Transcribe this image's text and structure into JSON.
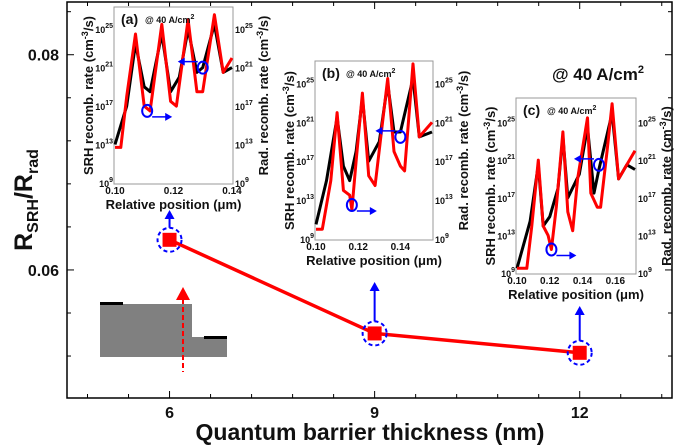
{
  "chart_data": [
    {
      "type": "line",
      "xlabel": "Quantum barrier thickness (nm)",
      "ylabel_main": "R",
      "ylabel_sub1": "SRH",
      "ylabel_slash": "/R",
      "ylabel_sub2": "rad",
      "annotation": "@ 40 A/cm",
      "annotation_sup": "2",
      "x": [
        6,
        9,
        12
      ],
      "y": [
        0.0628,
        0.0541,
        0.0523
      ],
      "xticks": [
        "6",
        "9",
        "12"
      ],
      "yticks": [
        "0.06",
        "0.08"
      ],
      "xlim": [
        4.5,
        13.35
      ],
      "ylim": [
        0.0481,
        0.0849
      ],
      "line_color": "#ff0000",
      "marker_color": "#ff0000",
      "highlight_color": "#0000ff"
    },
    {
      "type": "line",
      "panel": "(a)",
      "note": "@ 40 A/cm",
      "note_sup": "2",
      "xlabel": "Relative position (μm)",
      "ylabel_left": "SRH recomb. rate (cm",
      "ylabel_right": "Rad. recomb. rate (cm",
      "ylabel_exp": "-3",
      "ylabel_tail": "/s)",
      "yscale": "log",
      "xlim": [
        0.1,
        0.14
      ],
      "ylim_log10": [
        9,
        27.2
      ],
      "xticks": [
        "0.10",
        "0.12",
        "0.14"
      ],
      "ytick_exponents": [
        "9",
        "13",
        "17",
        "21",
        "25"
      ],
      "series": [
        {
          "color": "#000000",
          "points": [
            [
              0.1,
              13
            ],
            [
              0.104,
              17
            ],
            [
              0.107,
              23.5
            ],
            [
              0.11,
              19
            ],
            [
              0.112,
              18.5
            ],
            [
              0.116,
              24.5
            ],
            [
              0.119,
              18.5
            ],
            [
              0.122,
              20
            ],
            [
              0.125,
              25
            ],
            [
              0.128,
              20.5
            ],
            [
              0.13,
              21
            ],
            [
              0.134,
              25.5
            ],
            [
              0.137,
              20.5
            ],
            [
              0.14,
              21
            ]
          ]
        },
        {
          "color": "#ff0000",
          "points": [
            [
              0.1,
              12.7
            ],
            [
              0.102,
              12.7
            ],
            [
              0.104,
              18
            ],
            [
              0.107,
              24.5
            ],
            [
              0.11,
              17
            ],
            [
              0.112,
              16.5
            ],
            [
              0.116,
              25.5
            ],
            [
              0.119,
              17.5
            ],
            [
              0.121,
              17
            ],
            [
              0.125,
              26
            ],
            [
              0.128,
              18.5
            ],
            [
              0.13,
              18.5
            ],
            [
              0.134,
              26.5
            ],
            [
              0.137,
              20.5
            ],
            [
              0.14,
              22
            ]
          ]
        }
      ],
      "markers": [
        {
          "x": 0.111,
          "y": 16.5,
          "arrow": "right"
        },
        {
          "x": 0.13,
          "y": 21,
          "arrow": "left"
        }
      ]
    },
    {
      "type": "line",
      "panel": "(b)",
      "note": "@ 40 A/cm",
      "note_sup": "2",
      "xlabel": "Relative position (μm)",
      "ylabel_left": "SRH recomb. rate (cm",
      "ylabel_right": "Rad. recomb. rate (cm",
      "ylabel_exp": "-3",
      "ylabel_tail": "/s)",
      "yscale": "log",
      "xlim": [
        0.1,
        0.155
      ],
      "ylim_log10": [
        9,
        27.2
      ],
      "xticks": [
        "0.10",
        "0.12",
        "0.14"
      ],
      "ytick_exponents": [
        "9",
        "13",
        "17",
        "21",
        "25"
      ],
      "series": [
        {
          "color": "#000000",
          "points": [
            [
              0.1,
              10.5
            ],
            [
              0.105,
              15
            ],
            [
              0.11,
              21.5
            ],
            [
              0.113,
              16.5
            ],
            [
              0.116,
              15
            ],
            [
              0.119,
              18
            ],
            [
              0.122,
              23.5
            ],
            [
              0.125,
              17
            ],
            [
              0.13,
              19
            ],
            [
              0.134,
              25
            ],
            [
              0.137,
              20
            ],
            [
              0.14,
              20
            ],
            [
              0.146,
              25.5
            ],
            [
              0.149,
              19.5
            ],
            [
              0.155,
              20
            ]
          ]
        },
        {
          "color": "#ff0000",
          "points": [
            [
              0.1,
              10
            ],
            [
              0.103,
              10
            ],
            [
              0.107,
              15
            ],
            [
              0.11,
              22
            ],
            [
              0.113,
              14
            ],
            [
              0.116,
              13.5
            ],
            [
              0.117,
              12
            ],
            [
              0.119,
              17
            ],
            [
              0.122,
              24
            ],
            [
              0.125,
              15.5
            ],
            [
              0.128,
              14.5
            ],
            [
              0.131,
              20
            ],
            [
              0.134,
              25.5
            ],
            [
              0.137,
              18
            ],
            [
              0.14,
              16.5
            ],
            [
              0.142,
              16
            ],
            [
              0.146,
              27
            ],
            [
              0.149,
              19.5
            ],
            [
              0.155,
              21
            ]
          ]
        }
      ],
      "markers": [
        {
          "x": 0.117,
          "y": 12.5,
          "arrow": "right"
        },
        {
          "x": 0.14,
          "y": 19.5,
          "arrow": "left"
        }
      ]
    },
    {
      "type": "line",
      "panel": "(c)",
      "note": "@ 40 A/cm",
      "note_sup": "2",
      "xlabel": "Relative position (μm)",
      "ylabel_left": "SRH recomb. rate (cm",
      "ylabel_right": "Rad. recomb. rate (cm",
      "ylabel_exp": "-3",
      "ylabel_tail": "/s)",
      "yscale": "log",
      "xlim": [
        0.1,
        0.172
      ],
      "ylim_log10": [
        9,
        27.5
      ],
      "xticks": [
        "0.10",
        "0.12",
        "0.14",
        "0.16"
      ],
      "ytick_exponents": [
        "9",
        "13",
        "17",
        "21",
        "25"
      ],
      "series": [
        {
          "color": "#000000",
          "points": [
            [
              0.1,
              9.5
            ],
            [
              0.108,
              14.5
            ],
            [
              0.113,
              20.5
            ],
            [
              0.116,
              14
            ],
            [
              0.12,
              15
            ],
            [
              0.125,
              18
            ],
            [
              0.128,
              23.5
            ],
            [
              0.131,
              17
            ],
            [
              0.138,
              19.5
            ],
            [
              0.143,
              24.5
            ],
            [
              0.147,
              17.5
            ],
            [
              0.15,
              20
            ],
            [
              0.158,
              26
            ],
            [
              0.162,
              19
            ],
            [
              0.167,
              20.5
            ],
            [
              0.172,
              20
            ]
          ]
        },
        {
          "color": "#ff0000",
          "points": [
            [
              0.1,
              9.5
            ],
            [
              0.106,
              9.5
            ],
            [
              0.109,
              14
            ],
            [
              0.113,
              21
            ],
            [
              0.116,
              14
            ],
            [
              0.119,
              13
            ],
            [
              0.121,
              11.5
            ],
            [
              0.124,
              16
            ],
            [
              0.128,
              24
            ],
            [
              0.131,
              15.5
            ],
            [
              0.134,
              13.5
            ],
            [
              0.137,
              19
            ],
            [
              0.143,
              25.5
            ],
            [
              0.145,
              17.5
            ],
            [
              0.149,
              16
            ],
            [
              0.151,
              16
            ],
            [
              0.155,
              22
            ],
            [
              0.158,
              27
            ],
            [
              0.162,
              19
            ],
            [
              0.172,
              22
            ]
          ]
        }
      ],
      "markers": [
        {
          "x": 0.121,
          "y": 11.5,
          "arrow": "right"
        },
        {
          "x": 0.15,
          "y": 20.5,
          "arrow": "left"
        }
      ]
    }
  ]
}
